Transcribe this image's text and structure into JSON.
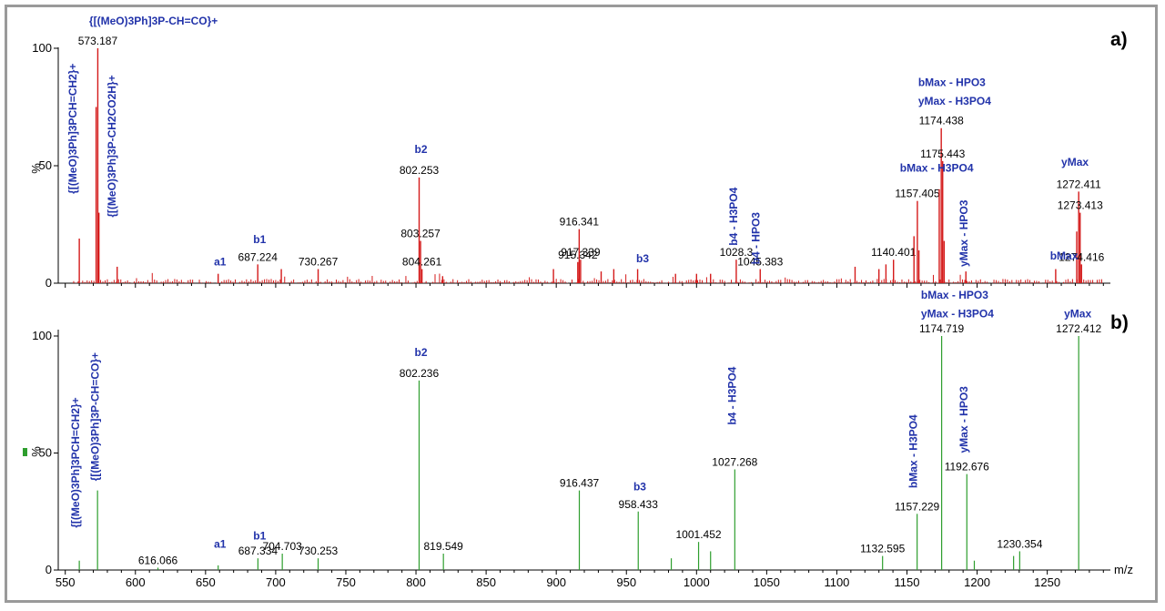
{
  "chart_data": [
    {
      "panel": "a)",
      "type": "spectrum",
      "series_color": "#d41a1a",
      "ylabel": "%",
      "xlim": [
        545,
        1295
      ],
      "ylim": [
        0,
        100
      ],
      "yticks": [
        0,
        50,
        100
      ],
      "peaks": [
        {
          "x": 560,
          "y": 19
        },
        {
          "x": 573.187,
          "y": 100,
          "mz": "573.187",
          "ion": "{[(MeO)3Ph]3P-CH=CO}+"
        },
        {
          "x": 572,
          "y": 75
        },
        {
          "x": 574,
          "y": 30
        },
        {
          "x": 587,
          "y": 7
        },
        {
          "x": 659,
          "y": 4
        },
        {
          "x": 687.224,
          "y": 8,
          "mz": "687.224"
        },
        {
          "x": 704,
          "y": 6
        },
        {
          "x": 730.267,
          "y": 6,
          "mz": "730.267"
        },
        {
          "x": 802.253,
          "y": 45,
          "mz": "802.253"
        },
        {
          "x": 803.257,
          "y": 18,
          "mz": "803.257"
        },
        {
          "x": 804.261,
          "y": 6,
          "mz": "804.261"
        },
        {
          "x": 819,
          "y": 3
        },
        {
          "x": 898,
          "y": 6
        },
        {
          "x": 915.342,
          "y": 9,
          "mz": "915.342"
        },
        {
          "x": 916.341,
          "y": 23,
          "mz": "916.341"
        },
        {
          "x": 917.339,
          "y": 10,
          "mz": "917.339"
        },
        {
          "x": 932,
          "y": 5
        },
        {
          "x": 941,
          "y": 6
        },
        {
          "x": 958,
          "y": 6
        },
        {
          "x": 985,
          "y": 4
        },
        {
          "x": 1000,
          "y": 4
        },
        {
          "x": 1010,
          "y": 4
        },
        {
          "x": 1028.3,
          "y": 10,
          "mz": "1028.3"
        },
        {
          "x": 1045.383,
          "y": 6,
          "mz": "1045.383"
        },
        {
          "x": 1113,
          "y": 7
        },
        {
          "x": 1130,
          "y": 6
        },
        {
          "x": 1135,
          "y": 8
        },
        {
          "x": 1140.401,
          "y": 10,
          "mz": "1140.401"
        },
        {
          "x": 1155,
          "y": 20
        },
        {
          "x": 1157.405,
          "y": 35,
          "mz": "1157.405"
        },
        {
          "x": 1158.5,
          "y": 14
        },
        {
          "x": 1173,
          "y": 40
        },
        {
          "x": 1174.438,
          "y": 66,
          "mz": "1174.438"
        },
        {
          "x": 1175.443,
          "y": 52,
          "mz": "1175.443"
        },
        {
          "x": 1176.5,
          "y": 18
        },
        {
          "x": 1192,
          "y": 5
        },
        {
          "x": 1256,
          "y": 6
        },
        {
          "x": 1271,
          "y": 22
        },
        {
          "x": 1272.411,
          "y": 39,
          "mz": "1272.411"
        },
        {
          "x": 1273.413,
          "y": 30,
          "mz": "1273.413"
        },
        {
          "x": 1274.416,
          "y": 8,
          "mz": "1274.416"
        }
      ],
      "ion_labels": [
        {
          "text": "{[(MeO)3Ph]3P-CH=CO}+",
          "x": 567,
          "y": 110,
          "orient": "h"
        },
        {
          "text": "{[(MeO)3Ph]3PCH=CH2}+",
          "x": 558,
          "y": 38,
          "orient": "v"
        },
        {
          "text": "{[(MeO)3Ph]3P-CH2CO2H}+",
          "x": 586,
          "y": 28,
          "orient": "v"
        },
        {
          "text": "a1",
          "x": 656,
          "y": 7.5,
          "orient": "h"
        },
        {
          "text": "b1",
          "x": 684,
          "y": 17,
          "orient": "h"
        },
        {
          "text": "b2",
          "x": 799,
          "y": 55.5,
          "orient": "h"
        },
        {
          "text": "b3",
          "x": 957,
          "y": 9,
          "orient": "h"
        },
        {
          "text": "b4 - H3PO4",
          "x": 1029,
          "y": 16,
          "orient": "v"
        },
        {
          "text": "b4 - HPO3",
          "x": 1045,
          "y": 8,
          "orient": "v"
        },
        {
          "text": "bMax - H3PO4",
          "x": 1145,
          "y": 47.5,
          "orient": "h"
        },
        {
          "text": "bMax - HPO3",
          "x": 1158,
          "y": 84,
          "orient": "h"
        },
        {
          "text": "yMax - H3PO4",
          "x": 1158,
          "y": 76,
          "orient": "h"
        },
        {
          "text": "yMax - HPO3",
          "x": 1193,
          "y": 7,
          "orient": "v"
        },
        {
          "text": "yMax",
          "x": 1260,
          "y": 50,
          "orient": "h"
        },
        {
          "text": "bMax",
          "x": 1252,
          "y": 10,
          "orient": "h"
        }
      ]
    },
    {
      "panel": "b)",
      "type": "spectrum",
      "series_color": "#2e9e2e",
      "ylabel": "%",
      "xlabel": "m/z",
      "xlim": [
        545,
        1295
      ],
      "ylim": [
        0,
        100
      ],
      "yticks": [
        0,
        50,
        100
      ],
      "xticks": [
        550,
        600,
        650,
        700,
        750,
        800,
        850,
        900,
        950,
        1000,
        1050,
        1100,
        1150,
        1200,
        1250
      ],
      "peaks": [
        {
          "x": 560,
          "y": 4
        },
        {
          "x": 573,
          "y": 34
        },
        {
          "x": 616.066,
          "y": 1,
          "mz": "616.066"
        },
        {
          "x": 659,
          "y": 2
        },
        {
          "x": 687.334,
          "y": 5,
          "mz": "687.334"
        },
        {
          "x": 704.703,
          "y": 7,
          "mz": "704.703"
        },
        {
          "x": 730.253,
          "y": 5,
          "mz": "730.253"
        },
        {
          "x": 802.236,
          "y": 81,
          "mz": "802.236"
        },
        {
          "x": 819.549,
          "y": 7,
          "mz": "819.549"
        },
        {
          "x": 916.437,
          "y": 34,
          "mz": "916.437"
        },
        {
          "x": 958.433,
          "y": 25,
          "mz": "958.433"
        },
        {
          "x": 982,
          "y": 5
        },
        {
          "x": 1001.452,
          "y": 12,
          "mz": "1001.452"
        },
        {
          "x": 1010,
          "y": 8
        },
        {
          "x": 1027.268,
          "y": 43,
          "mz": "1027.268"
        },
        {
          "x": 1132.595,
          "y": 6,
          "mz": "1132.595"
        },
        {
          "x": 1157.229,
          "y": 24,
          "mz": "1157.229"
        },
        {
          "x": 1174.719,
          "y": 100,
          "mz": "1174.719"
        },
        {
          "x": 1192.676,
          "y": 41,
          "mz": "1192.676"
        },
        {
          "x": 1198,
          "y": 4
        },
        {
          "x": 1226,
          "y": 6
        },
        {
          "x": 1230.354,
          "y": 8,
          "mz": "1230.354"
        },
        {
          "x": 1272.412,
          "y": 100,
          "mz": "1272.412"
        }
      ],
      "ion_labels": [
        {
          "text": "{[(MeO)3Ph]3PCH=CH2}+",
          "x": 560,
          "y": 18,
          "orient": "v"
        },
        {
          "text": "{[(MeO)3Ph]3P-CH=CO}+",
          "x": 574,
          "y": 38,
          "orient": "v"
        },
        {
          "text": "a1",
          "x": 656,
          "y": 9.5,
          "orient": "h"
        },
        {
          "text": "b1",
          "x": 684,
          "y": 13,
          "orient": "h"
        },
        {
          "text": "b2",
          "x": 799,
          "y": 91.5,
          "orient": "h"
        },
        {
          "text": "b3",
          "x": 955,
          "y": 34,
          "orient": "h"
        },
        {
          "text": "b4 - H3PO4",
          "x": 1028,
          "y": 62,
          "orient": "v"
        },
        {
          "text": "bMax - H3PO4",
          "x": 1157,
          "y": 35,
          "orient": "v"
        },
        {
          "text": "bMax - HPO3",
          "x": 1160,
          "y": 116,
          "orient": "h"
        },
        {
          "text": "yMax - H3PO4",
          "x": 1160,
          "y": 108,
          "orient": "h"
        },
        {
          "text": "yMax - HPO3",
          "x": 1193,
          "y": 50,
          "orient": "v"
        },
        {
          "text": "yMax",
          "x": 1262,
          "y": 108,
          "orient": "h"
        }
      ]
    }
  ]
}
